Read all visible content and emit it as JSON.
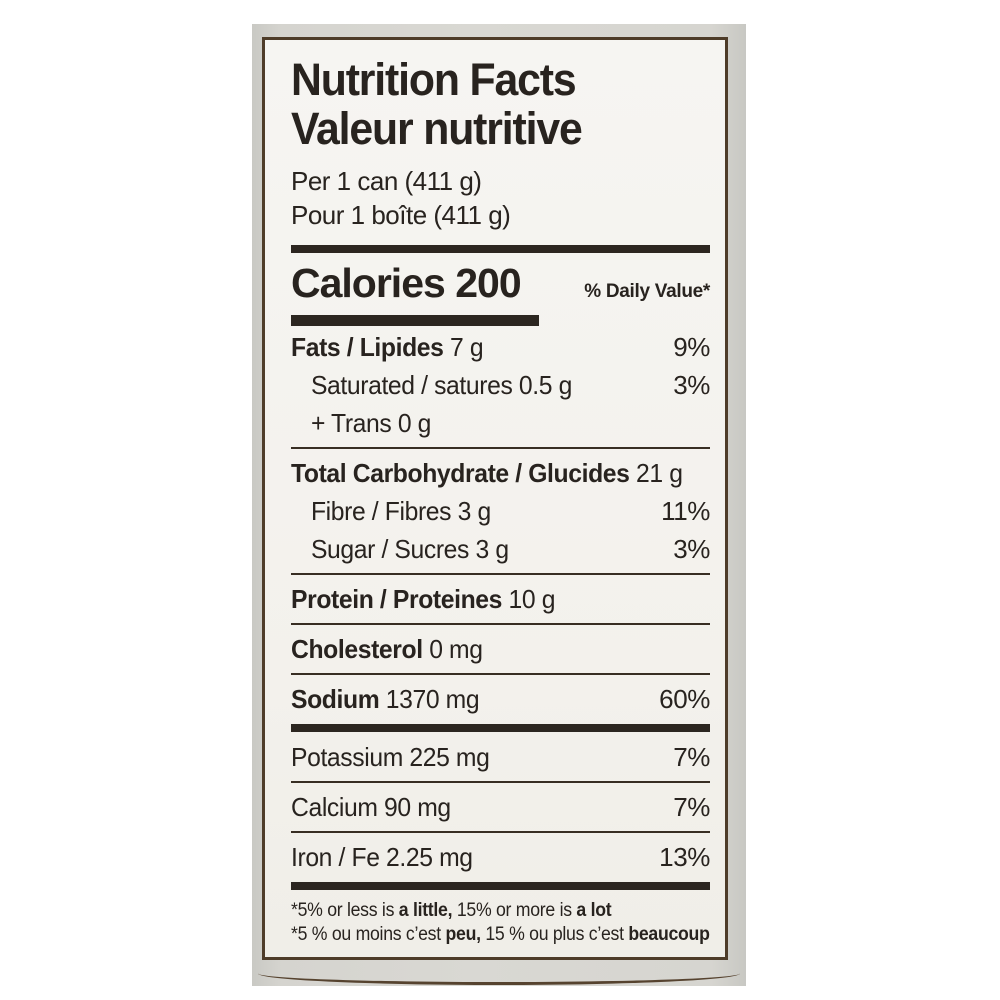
{
  "colors": {
    "page_bg": "#ffffff",
    "photo_bg": "#d6d5d0",
    "label_bg": "#f4f2ee",
    "label_border": "#4e3c29",
    "rule_dark": "#2c2620",
    "text": "#28231f"
  },
  "label": {
    "title_en": "Nutrition Facts",
    "title_fr": "Valeur nutritive",
    "serving_en": "Per 1 can (411 g)",
    "serving_fr": "Pour 1 boîte (411 g)",
    "calories_word": "Calories",
    "calories_value": "200",
    "daily_value_header": "% Daily Value*",
    "rows": [
      {
        "bold": "Fats / Lipides",
        "rest": " 7 g",
        "pct": "9%"
      },
      {
        "bold": "",
        "rest": "Saturated / satures 0.5 g",
        "pct": "3%"
      },
      {
        "bold": "",
        "rest": "+ Trans 0 g",
        "pct": ""
      },
      {
        "bold": "Total Carbohydrate / Glucides",
        "rest": " 21 g",
        "pct": ""
      },
      {
        "bold": "",
        "rest": "Fibre / Fibres 3 g",
        "pct": "11%"
      },
      {
        "bold": "",
        "rest": "Sugar / Sucres 3 g",
        "pct": "3%"
      },
      {
        "bold": "Protein / Proteines",
        "rest": " 10 g",
        "pct": ""
      },
      {
        "bold": "Cholesterol",
        "rest": " 0 mg",
        "pct": ""
      },
      {
        "bold": "Sodium",
        "rest": " 1370 mg",
        "pct": "60%"
      },
      {
        "bold": "",
        "rest": "Potassium 225 mg",
        "pct": "7%"
      },
      {
        "bold": "",
        "rest": "Calcium 90 mg",
        "pct": "7%"
      },
      {
        "bold": "",
        "rest": "Iron / Fe 2.25 mg",
        "pct": "13%"
      }
    ],
    "footnote_en": [
      "*5% or less is ",
      "a little,",
      " 15% or more is ",
      "a lot"
    ],
    "footnote_fr": [
      "*5 % ou moins c’est ",
      "peu,",
      " 15 % ou plus c’est ",
      "beaucoup"
    ]
  }
}
